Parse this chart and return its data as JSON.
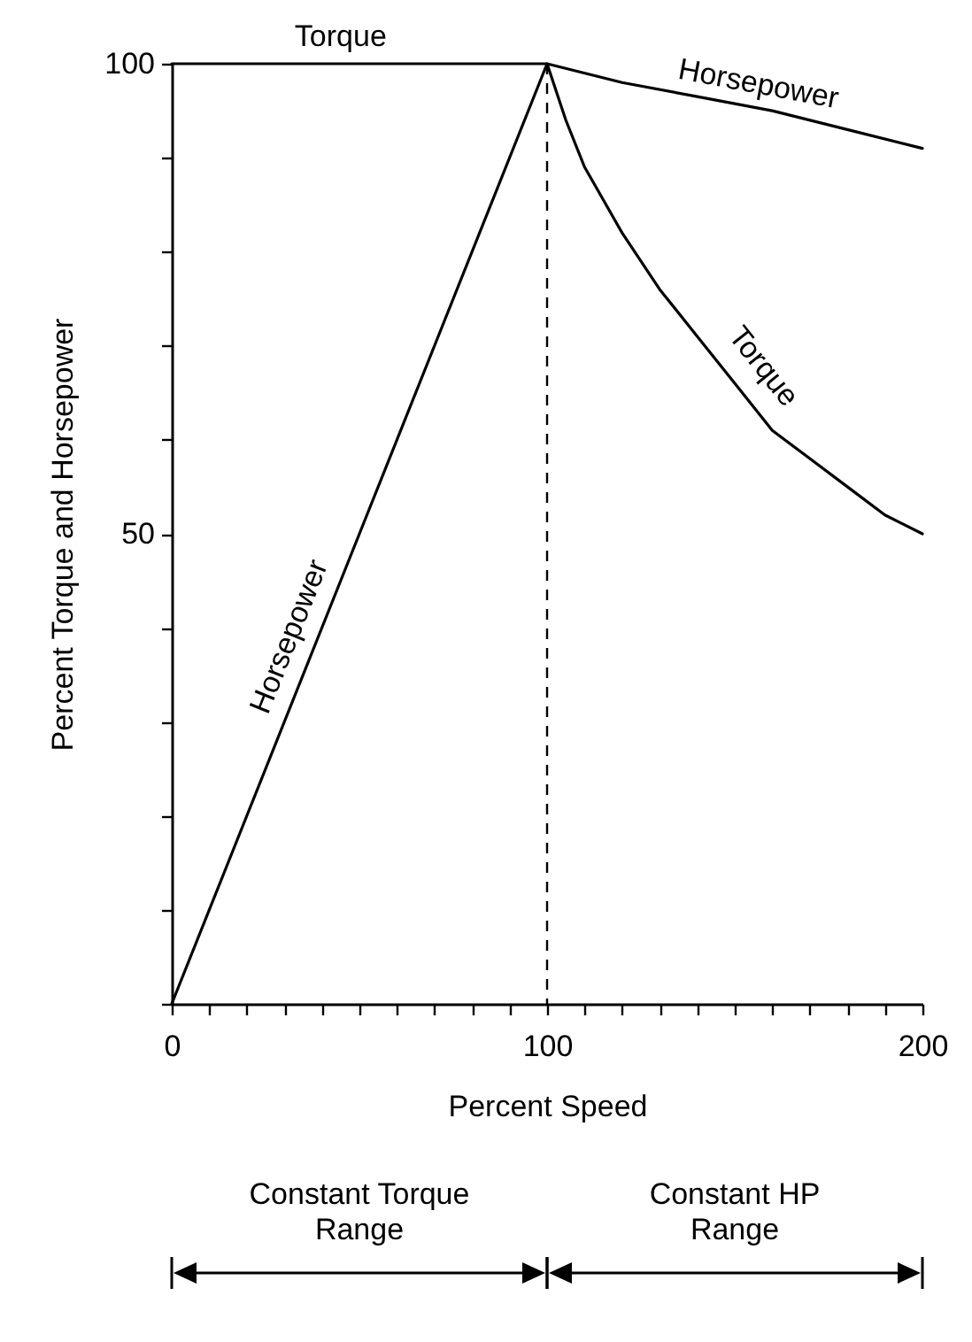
{
  "chart_data": {
    "type": "line",
    "xlabel": "Percent Speed",
    "ylabel": "Percent Torque and Horsepower",
    "xlim": [
      0,
      200
    ],
    "ylim": [
      0,
      100
    ],
    "xticks": [
      0,
      {
        "value": 10,
        "label": null
      },
      {
        "value": 20,
        "label": null
      },
      {
        "value": 30,
        "label": null
      },
      {
        "value": 40,
        "label": null
      },
      {
        "value": 50,
        "label": null
      },
      {
        "value": 60,
        "label": null
      },
      {
        "value": 70,
        "label": null
      },
      {
        "value": 80,
        "label": null
      },
      {
        "value": 90,
        "label": null
      },
      100,
      {
        "value": 110,
        "label": null
      },
      {
        "value": 120,
        "label": null
      },
      {
        "value": 130,
        "label": null
      },
      {
        "value": 140,
        "label": null
      },
      {
        "value": 150,
        "label": null
      },
      {
        "value": 160,
        "label": null
      },
      {
        "value": 170,
        "label": null
      },
      {
        "value": 180,
        "label": null
      },
      {
        "value": 190,
        "label": null
      },
      200
    ],
    "yticks": [
      {
        "value": 0,
        "label": null
      },
      {
        "value": 10,
        "label": null
      },
      {
        "value": 20,
        "label": null
      },
      {
        "value": 30,
        "label": null
      },
      {
        "value": 40,
        "label": null
      },
      50,
      {
        "value": 60,
        "label": null
      },
      {
        "value": 70,
        "label": null
      },
      {
        "value": 80,
        "label": null
      },
      {
        "value": 90,
        "label": null
      },
      100
    ],
    "series": [
      {
        "color": "#000000",
        "x": [
          0,
          50,
          100,
          120,
          140,
          160,
          180,
          200
        ],
        "values": [
          0,
          50,
          100,
          98,
          96.5,
          95,
          93,
          91
        ]
      },
      {
        "color": "#000000",
        "x": [
          0,
          100,
          105,
          110,
          120,
          130,
          140,
          150,
          160,
          170,
          180,
          190,
          200
        ],
        "values": [
          100,
          100,
          94,
          89,
          82,
          76,
          71,
          66,
          61,
          58,
          55,
          52,
          50
        ]
      }
    ],
    "annotations": [
      {
        "text": "Torque",
        "x": 45,
        "y": 100
      },
      {
        "text": "Horsepower",
        "x": 155,
        "y": 95
      },
      {
        "text": "Torque",
        "x": 152,
        "y": 66
      },
      {
        "text": "Horsepower",
        "x": 38,
        "y": 38
      },
      "Constant Torque Range",
      "Constant HP Range"
    ],
    "ref_lines": [
      {
        "axis": "x",
        "value": 100,
        "line_style": "dashed"
      }
    ],
    "grid": false,
    "marker": "none",
    "line_style": "solid"
  }
}
